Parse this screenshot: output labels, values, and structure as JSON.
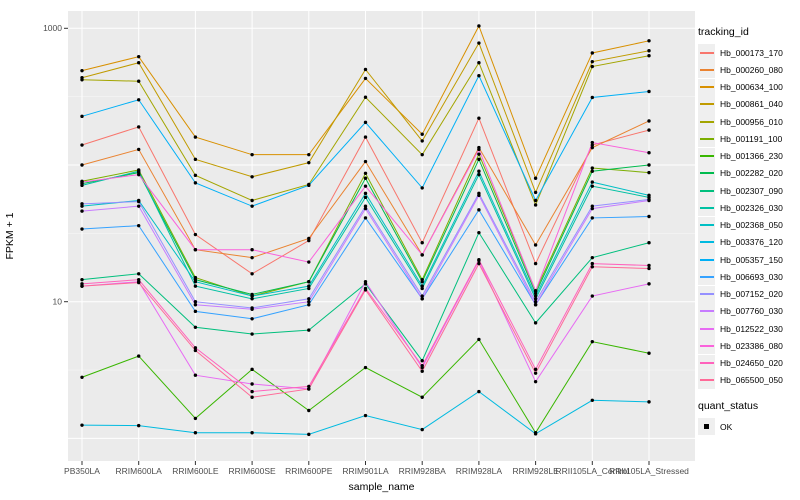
{
  "chart": {
    "x_axis_title": "sample_name",
    "y_axis_title": "FPKM + 1",
    "legend_title": "tracking_id",
    "quant_legend_title": "quant_status",
    "quant_legend_item": "OK",
    "panel_bg_color": "#EBEBEB",
    "gridline_color": "#FFFFFF",
    "axis_text_color": "#4D4D4D",
    "point_color": "#000000"
  },
  "chart_data": {
    "type": "line",
    "x_type": "categorical",
    "y_scale": "log10",
    "xlabel": "sample_name",
    "ylabel": "FPKM + 1",
    "ylim": [
      1,
      1100
    ],
    "y_breaks_labeled": [
      1000,
      10
    ],
    "y_gridlines_major": [
      1000,
      100,
      10,
      1
    ],
    "y_gridlines_minor": [
      316.2,
      31.62,
      3.162
    ],
    "grid": true,
    "legend_position": "right",
    "point_marker": "black-dot",
    "categories": [
      "PB350LA",
      "RRIM600LA",
      "RRIM600LE",
      "RRIM600SE",
      "RRIM600PE",
      "RRIM901LA",
      "RRIM928BA",
      "RRIM928LA",
      "RRIM928LE",
      "RRII105LA_Control",
      "RRII105LA_Stressed"
    ],
    "series": [
      {
        "name": "Hb_000173_170",
        "color": "#F8766D",
        "values": [
          140,
          190,
          31,
          16,
          28,
          160,
          27,
          220,
          19,
          140,
          180
        ]
      },
      {
        "name": "Hb_000260_080",
        "color": "#EA8331",
        "values": [
          100,
          130,
          24,
          21,
          29,
          106,
          22,
          134,
          26,
          134,
          210
        ]
      },
      {
        "name": "Hb_000634_100",
        "color": "#D89000",
        "values": [
          490,
          620,
          160,
          119,
          119,
          430,
          168,
          1040,
          80,
          660,
          810
        ]
      },
      {
        "name": "Hb_000861_040",
        "color": "#C09B00",
        "values": [
          435,
          560,
          110,
          82,
          104,
          500,
          150,
          780,
          63,
          570,
          685
        ]
      },
      {
        "name": "Hb_000956_010",
        "color": "#A3A500",
        "values": [
          420,
          410,
          84,
          55,
          72,
          313,
          119,
          560,
          51,
          525,
          630
        ]
      },
      {
        "name": "Hb_001191_100",
        "color": "#7CAE00",
        "values": [
          76,
          92,
          15,
          11,
          14,
          87,
          14.5,
          120,
          12,
          95,
          88
        ]
      },
      {
        "name": "Hb_001366_230",
        "color": "#39B600",
        "values": [
          2.8,
          4.0,
          1.4,
          3.2,
          1.6,
          3.3,
          2.0,
          5.3,
          1.1,
          5.1,
          4.2
        ]
      },
      {
        "name": "Hb_002282_020",
        "color": "#00BB4E",
        "values": [
          73,
          88,
          14.5,
          11.3,
          14,
          80,
          14,
          110,
          11.5,
          90,
          100
        ]
      },
      {
        "name": "Hb_002307_090",
        "color": "#00BF7D",
        "values": [
          14.5,
          16,
          6.5,
          5.8,
          6.2,
          13.5,
          3.7,
          32,
          7.0,
          21,
          27
        ]
      },
      {
        "name": "Hb_002326_030",
        "color": "#00C1A3",
        "values": [
          71,
          90,
          13,
          10.5,
          12.5,
          58,
          12.5,
          85,
          10.5,
          70,
          58
        ]
      },
      {
        "name": "Hb_002368_050",
        "color": "#00BFC4",
        "values": [
          50,
          55,
          14,
          11,
          13,
          62,
          13,
          90,
          11,
          75,
          60
        ]
      },
      {
        "name": "Hb_003376_120",
        "color": "#00BAE0",
        "values": [
          1.25,
          1.24,
          1.1,
          1.1,
          1.07,
          1.47,
          1.16,
          2.2,
          1.08,
          1.9,
          1.85
        ]
      },
      {
        "name": "Hb_005357_150",
        "color": "#00B0F6",
        "values": [
          227,
          300,
          74,
          50,
          71,
          205,
          68,
          450,
          55,
          312,
          345
        ]
      },
      {
        "name": "Hb_006693_030",
        "color": "#35A2FF",
        "values": [
          34,
          36,
          8.5,
          7.5,
          9.5,
          41,
          10.5,
          47,
          9.5,
          41,
          42
        ]
      },
      {
        "name": "Hb_007152_020",
        "color": "#9590FF",
        "values": [
          52,
          54,
          10,
          9,
          10.5,
          50,
          11,
          62,
          10,
          50,
          56
        ]
      },
      {
        "name": "Hb_007760_030",
        "color": "#C77CFF",
        "values": [
          46,
          50,
          9.5,
          8.8,
          10,
          48,
          10.5,
          60,
          9.5,
          48,
          55
        ]
      },
      {
        "name": "Hb_012522_030",
        "color": "#E76BF3",
        "values": [
          13,
          14,
          2.9,
          2.5,
          2.3,
          14,
          3.3,
          20,
          2.6,
          11,
          13.5
        ]
      },
      {
        "name": "Hb_023386_080",
        "color": "#FA62DB",
        "values": [
          75,
          85,
          24,
          24,
          19.5,
          70,
          22,
          130,
          12,
          146,
          123
        ]
      },
      {
        "name": "Hb_024650_020",
        "color": "#FF62BC",
        "values": [
          13.5,
          14.5,
          4.6,
          2.2,
          2.4,
          12.5,
          3.4,
          20.3,
          3.2,
          19,
          18.4
        ]
      },
      {
        "name": "Hb_065500_050",
        "color": "#FF6A98",
        "values": [
          13,
          13.8,
          4.4,
          2.0,
          2.3,
          12.2,
          3.1,
          19,
          3.0,
          18,
          17.5
        ]
      }
    ],
    "quant_status": {
      "title": "quant_status",
      "items": [
        {
          "label": "OK",
          "marker": "black-square"
        }
      ]
    }
  }
}
